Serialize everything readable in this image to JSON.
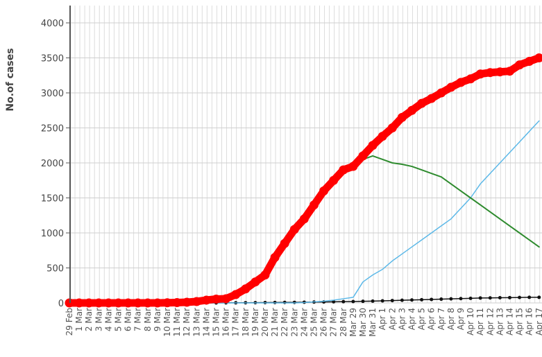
{
  "chart_data": {
    "type": "line",
    "title": "",
    "xlabel": "",
    "ylabel": "No.of cases",
    "ylim": [
      0,
      4200
    ],
    "yticks": [
      "0",
      "500",
      "1000",
      "1500",
      "2000",
      "2500",
      "3000",
      "3500",
      "4000"
    ],
    "grid": true,
    "categories": [
      "29 Feb",
      "1 Mar",
      "2 Mar",
      "3 Mar",
      "4 Mar",
      "5 Mar",
      "6 Mar",
      "7 Mar",
      "8 Mar",
      "9 Mar",
      "10 Mar",
      "11 Mar",
      "12 Mar",
      "13 Mar",
      "14 Mar",
      "15 Mar",
      "16 Mar",
      "17 Mar",
      "18 Mar",
      "19 Mar",
      "20 Mar",
      "21 Mar",
      "22 Mar",
      "23 Mar",
      "24 Mar",
      "25 Mar",
      "26 Mar",
      "27 Mar",
      "28 Mar",
      "Mar 29",
      "Mar 30",
      "Mar 31",
      "Apr 1",
      "Apr 2",
      "Apr 3",
      "Apr 4",
      "Apr 5",
      "Apr 6",
      "Apr 7",
      "Apr 8",
      "Apr 9",
      "Apr 10",
      "Apr 11",
      "Apr 12",
      "Apr 13",
      "Apr 14",
      "Apr 15",
      "Apr 16",
      "Apr 17"
    ],
    "series": [
      {
        "color": "#ff0000",
        "values": [
          0,
          0,
          0,
          0,
          0,
          0,
          0,
          0,
          0,
          0,
          2,
          5,
          10,
          20,
          40,
          55,
          60,
          120,
          200,
          300,
          400,
          650,
          850,
          1050,
          1200,
          1400,
          1600,
          1750,
          1900,
          1950,
          2100,
          2250,
          2380,
          2500,
          2650,
          2750,
          2850,
          2920,
          3000,
          3080,
          3150,
          3200,
          3270,
          3290,
          3300,
          3310,
          3400,
          3450,
          3500
        ]
      },
      {
        "color": "#2e8b2e",
        "values": [
          0,
          0,
          0,
          0,
          0,
          0,
          0,
          0,
          0,
          0,
          2,
          5,
          10,
          20,
          40,
          55,
          60,
          120,
          200,
          320,
          450,
          680,
          850,
          1050,
          1200,
          1400,
          1600,
          1750,
          1900,
          1950,
          2050,
          2100,
          2050,
          2000,
          1980,
          1950,
          1900,
          1850,
          1800,
          1700,
          1600,
          1500,
          1400,
          1300,
          1200,
          1100,
          1000,
          900,
          800
        ]
      },
      {
        "color": "#5bb8e8",
        "values": [
          0,
          0,
          0,
          0,
          0,
          0,
          0,
          0,
          0,
          0,
          0,
          0,
          0,
          0,
          0,
          0,
          0,
          0,
          0,
          0,
          0,
          0,
          0,
          0,
          5,
          15,
          25,
          40,
          60,
          80,
          300,
          400,
          480,
          600,
          700,
          800,
          900,
          1000,
          1100,
          1200,
          1350,
          1500,
          1700,
          1850,
          2000,
          2150,
          2300,
          2450,
          2600
        ]
      },
      {
        "color": "#111111",
        "values": [
          0,
          0,
          0,
          0,
          0,
          0,
          0,
          0,
          0,
          0,
          0,
          0,
          0,
          0,
          0,
          0,
          1,
          2,
          3,
          4,
          5,
          6,
          7,
          8,
          10,
          12,
          14,
          16,
          18,
          20,
          23,
          26,
          30,
          34,
          38,
          42,
          46,
          50,
          54,
          58,
          62,
          66,
          70,
          72,
          74,
          76,
          78,
          80,
          80
        ]
      }
    ]
  }
}
